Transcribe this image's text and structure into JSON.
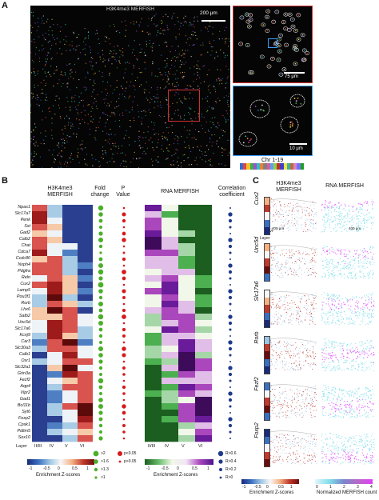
{
  "panel_a": {
    "letter": "A",
    "title": "H3K4me3 MERFISH",
    "scale_main": "200 μm",
    "scale_zoom1": "75 μm",
    "scale_zoom2": "10 μm",
    "chr_label": "Chr 1-19",
    "chr_colors": [
      "#2f6fd6",
      "#e04444",
      "#f0c030",
      "#3ab04a",
      "#a050d0",
      "#30c0c0",
      "#f08030",
      "#808080",
      "#d060a0",
      "#60a0f0",
      "#90d040",
      "#c03030",
      "#4040c0",
      "#f0e040",
      "#40b0a0",
      "#b07040",
      "#e080c0",
      "#7070ff",
      "#20a020"
    ]
  },
  "panel_b": {
    "letter": "B",
    "headers": {
      "h3k4me3": "H3K4me3\nMERFISH",
      "fold_change": "Fold\nchange",
      "p_value": "P\nValue",
      "rna": "RNA MERFISH",
      "corr": "Correlation\ncoefficient"
    },
    "genes": [
      "Npas1",
      "Slc17a7",
      "Penk",
      "Sst",
      "Gad2",
      "Calb2",
      "Chat",
      "Cdca7",
      "Ccdc80",
      "Nxph4",
      "Pdgfra",
      "Reln",
      "Cux2",
      "Lamp5",
      "Pou3f1",
      "Rorb",
      "Lhx6",
      "Satb2",
      "Unc5d",
      "Slc17a6",
      "Kcnj9",
      "Car3",
      "Slc30a3",
      "Calb1",
      "Osr1",
      "Slc32a1",
      "Grin3a",
      "Fezf2",
      "Aqp4",
      "Vipr2",
      "Gad1",
      "Bcl11b",
      "Syt6",
      "Foxp2",
      "Cpsk1",
      "Pdlim5",
      "Sox10"
    ],
    "layer_label": "Layer",
    "layers": [
      "II/III",
      "IV",
      "V",
      "VI"
    ],
    "rna_layers": [
      "II/III",
      "IV",
      "V",
      "VI"
    ],
    "enrich_ticks": [
      "-1",
      "-0.5",
      "0",
      "0.5",
      "1"
    ],
    "enrich_label": "Enrichment Z-scores",
    "fc_legend": [
      ">2",
      ">1.6",
      ">1.3",
      ">1"
    ],
    "pv_legend": [
      "p<0.05",
      "p>0.05"
    ],
    "r_legend": [
      "R>0.6",
      "R>0.4",
      "R>0.2",
      "R>0"
    ],
    "color_green": "#4caf2a",
    "color_red": "#d7191c",
    "color_navy": "#1f3a8a"
  },
  "panel_c": {
    "letter": "C",
    "header_h3": "H3K4me3\nMERFISH",
    "header_rna": "RNA MERFISH",
    "genes": [
      "Cux2",
      "Unc5d",
      "Slc17a6",
      "Rorb",
      "Fezf2",
      "Foxp2"
    ],
    "layer_label": "Layer",
    "layer_tick_i": "I",
    "layer_tick_vi": "VI",
    "scale1": "400 μm",
    "scale2": "400 μm",
    "bottom_ticks": [
      "-1",
      "-0.5",
      "0",
      "0.5",
      "1"
    ],
    "bottom_label": "Enrichment Z-scores",
    "rna_ticks": [
      "0",
      "1",
      "2",
      "3",
      "4"
    ],
    "rna_label": "Normalized MERFISH count"
  }
}
